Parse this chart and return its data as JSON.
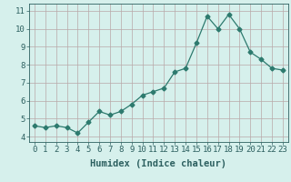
{
  "x": [
    0,
    1,
    2,
    3,
    4,
    5,
    6,
    7,
    8,
    9,
    10,
    11,
    12,
    13,
    14,
    15,
    16,
    17,
    18,
    19,
    20,
    21,
    22,
    23
  ],
  "y": [
    4.6,
    4.5,
    4.6,
    4.5,
    4.2,
    4.8,
    5.4,
    5.2,
    5.4,
    5.8,
    6.3,
    6.5,
    6.7,
    7.6,
    7.8,
    9.2,
    10.7,
    10.0,
    10.8,
    10.0,
    8.7,
    8.3,
    7.8,
    7.7
  ],
  "line_color": "#2d7a6e",
  "marker": "D",
  "marker_size": 2.5,
  "bg_color": "#d6f0ec",
  "grid_color": "#b8a8a8",
  "xlabel": "Humidex (Indice chaleur)",
  "xlabel_fontsize": 7.5,
  "tick_fontsize": 6.5,
  "ylim": [
    3.7,
    11.4
  ],
  "xlim": [
    -0.5,
    23.5
  ],
  "yticks": [
    4,
    5,
    6,
    7,
    8,
    9,
    10,
    11
  ],
  "xtick_labels": [
    "0",
    "1",
    "2",
    "3",
    "4",
    "5",
    "6",
    "7",
    "8",
    "9",
    "10",
    "11",
    "12",
    "13",
    "14",
    "15",
    "16",
    "17",
    "18",
    "19",
    "20",
    "21",
    "22",
    "23"
  ]
}
